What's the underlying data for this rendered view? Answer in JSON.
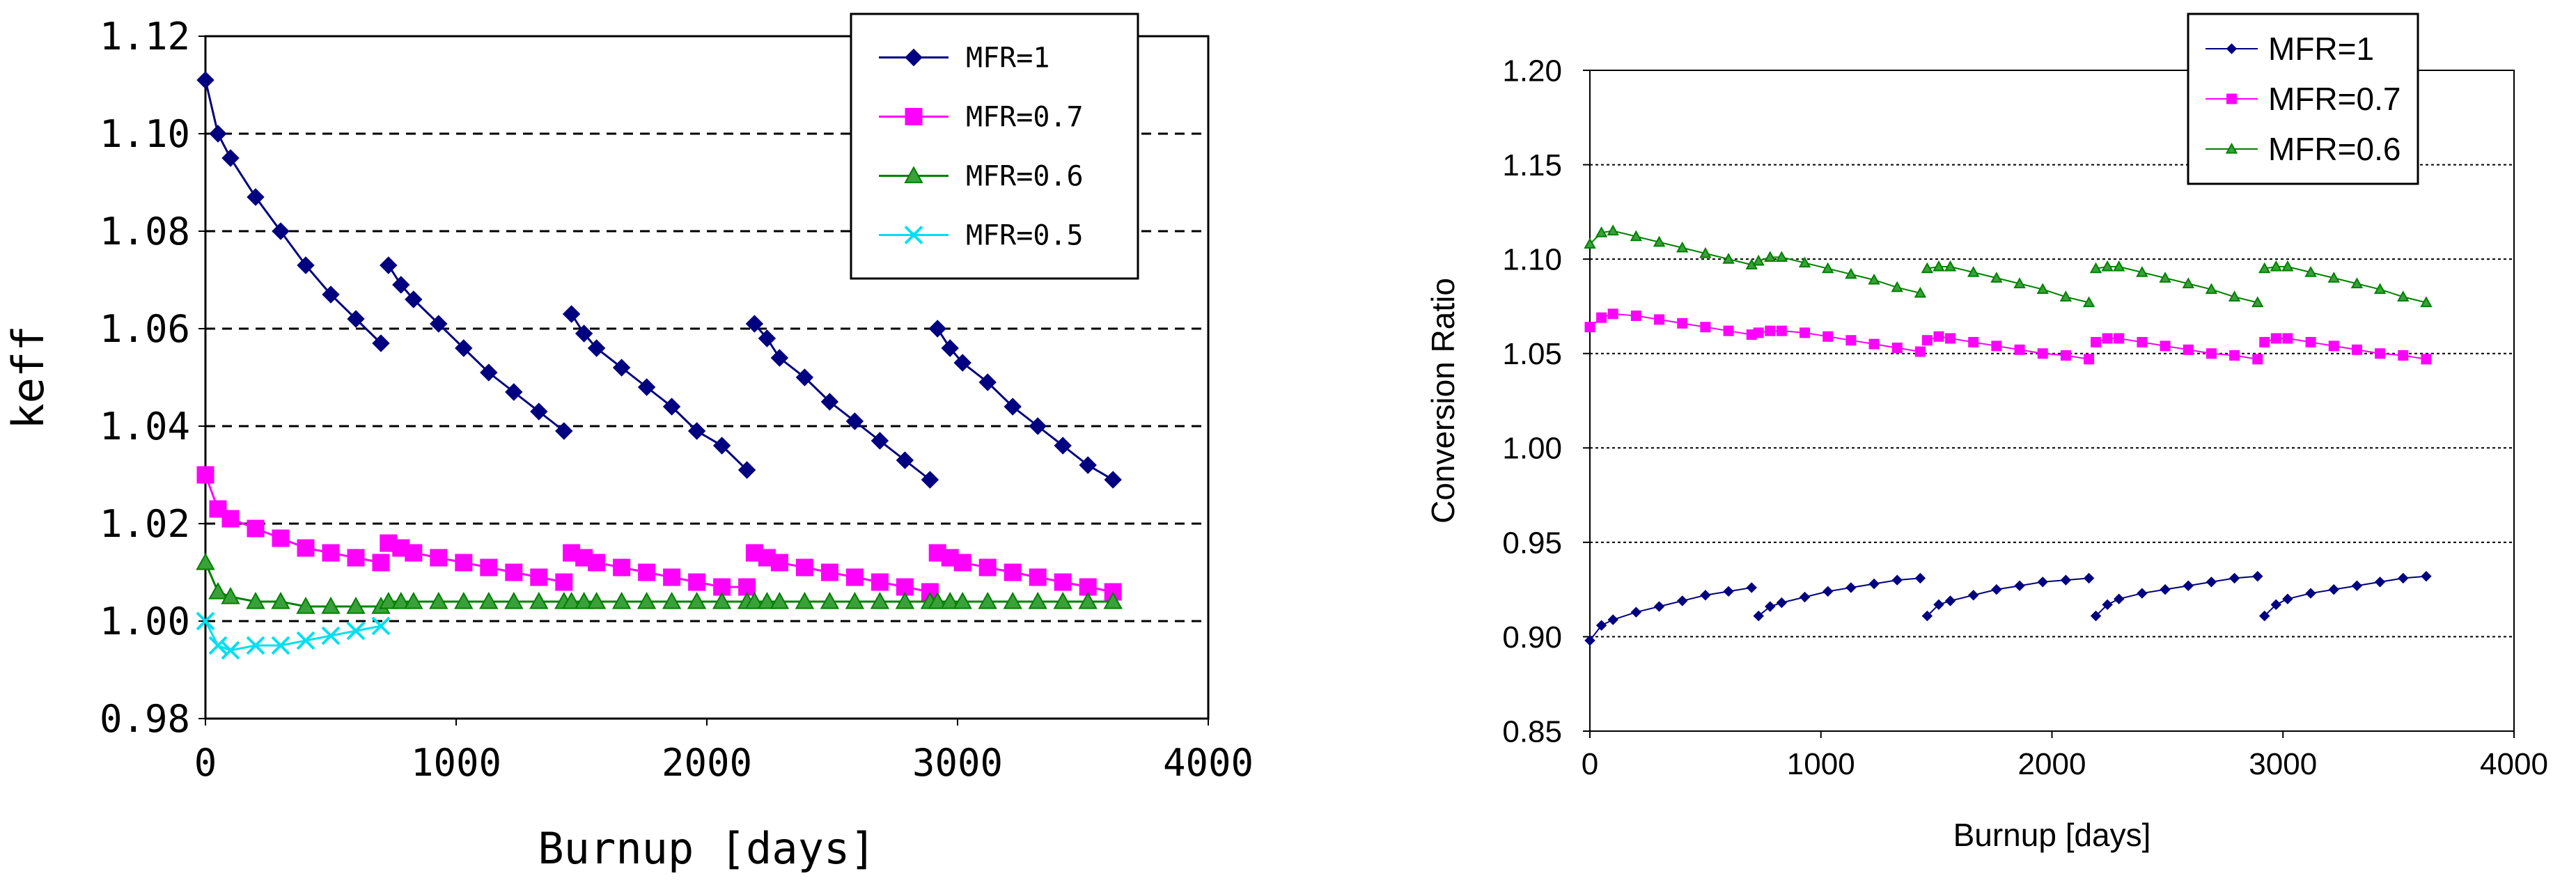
{
  "chart_data": [
    {
      "type": "line",
      "title": "",
      "xlabel": "Burnup [days]",
      "ylabel": "keff",
      "xlim": [
        0,
        4000
      ],
      "ylim": [
        0.98,
        1.12
      ],
      "x_ticks": [
        "0",
        "1000",
        "2000",
        "3000",
        "4000"
      ],
      "y_ticks": [
        "0.98",
        "1.00",
        "1.02",
        "1.04",
        "1.06",
        "1.08",
        "1.10",
        "1.12"
      ],
      "grid": "horizontal-dashed",
      "legend_position": "top-right",
      "series": [
        {
          "name": "MFR=1",
          "color": "#000080",
          "marker": "diamond",
          "segments": [
            {
              "x": [
                0,
                50,
                100,
                200,
                300,
                400,
                500,
                600,
                700
              ],
              "y": [
                1.111,
                1.1,
                1.095,
                1.087,
                1.08,
                1.073,
                1.067,
                1.062,
                1.057
              ]
            },
            {
              "x": [
                730,
                780,
                830,
                930,
                1030,
                1130,
                1230,
                1330,
                1430
              ],
              "y": [
                1.073,
                1.069,
                1.066,
                1.061,
                1.056,
                1.051,
                1.047,
                1.043,
                1.039
              ]
            },
            {
              "x": [
                1460,
                1510,
                1560,
                1660,
                1760,
                1860,
                1960,
                2060,
                2160
              ],
              "y": [
                1.063,
                1.059,
                1.056,
                1.052,
                1.048,
                1.044,
                1.039,
                1.036,
                1.031
              ]
            },
            {
              "x": [
                2190,
                2240,
                2290,
                2390,
                2490,
                2590,
                2690,
                2790,
                2890
              ],
              "y": [
                1.061,
                1.058,
                1.054,
                1.05,
                1.045,
                1.041,
                1.037,
                1.033,
                1.029
              ]
            },
            {
              "x": [
                2920,
                2970,
                3020,
                3120,
                3220,
                3320,
                3420,
                3520,
                3620
              ],
              "y": [
                1.06,
                1.056,
                1.053,
                1.049,
                1.044,
                1.04,
                1.036,
                1.032,
                1.029
              ]
            }
          ]
        },
        {
          "name": "MFR=0.7",
          "color": "#ff00ff",
          "marker": "square",
          "segments": [
            {
              "x": [
                0,
                50,
                100,
                200,
                300,
                400,
                500,
                600,
                700
              ],
              "y": [
                1.03,
                1.023,
                1.021,
                1.019,
                1.017,
                1.015,
                1.014,
                1.013,
                1.012
              ]
            },
            {
              "x": [
                730,
                780,
                830,
                930,
                1030,
                1130,
                1230,
                1330,
                1430
              ],
              "y": [
                1.016,
                1.015,
                1.014,
                1.013,
                1.012,
                1.011,
                1.01,
                1.009,
                1.008
              ]
            },
            {
              "x": [
                1460,
                1510,
                1560,
                1660,
                1760,
                1860,
                1960,
                2060,
                2160
              ],
              "y": [
                1.014,
                1.013,
                1.012,
                1.011,
                1.01,
                1.009,
                1.008,
                1.007,
                1.007
              ]
            },
            {
              "x": [
                2190,
                2240,
                2290,
                2390,
                2490,
                2590,
                2690,
                2790,
                2890
              ],
              "y": [
                1.014,
                1.013,
                1.012,
                1.011,
                1.01,
                1.009,
                1.008,
                1.007,
                1.006
              ]
            },
            {
              "x": [
                2920,
                2970,
                3020,
                3120,
                3220,
                3320,
                3420,
                3520,
                3620
              ],
              "y": [
                1.014,
                1.013,
                1.012,
                1.011,
                1.01,
                1.009,
                1.008,
                1.007,
                1.006
              ]
            }
          ]
        },
        {
          "name": "MFR=0.6",
          "color": "#008000",
          "marker": "triangle",
          "segments": [
            {
              "x": [
                0,
                50,
                100,
                200,
                300,
                400,
                500,
                600,
                700
              ],
              "y": [
                1.012,
                1.006,
                1.005,
                1.004,
                1.004,
                1.003,
                1.003,
                1.003,
                1.003
              ]
            },
            {
              "x": [
                730,
                780,
                830,
                930,
                1030,
                1130,
                1230,
                1330,
                1430
              ],
              "y": [
                1.004,
                1.004,
                1.004,
                1.004,
                1.004,
                1.004,
                1.004,
                1.004,
                1.004
              ]
            },
            {
              "x": [
                1460,
                1510,
                1560,
                1660,
                1760,
                1860,
                1960,
                2060,
                2160
              ],
              "y": [
                1.004,
                1.004,
                1.004,
                1.004,
                1.004,
                1.004,
                1.004,
                1.004,
                1.004
              ]
            },
            {
              "x": [
                2190,
                2240,
                2290,
                2390,
                2490,
                2590,
                2690,
                2790,
                2890
              ],
              "y": [
                1.004,
                1.004,
                1.004,
                1.004,
                1.004,
                1.004,
                1.004,
                1.004,
                1.004
              ]
            },
            {
              "x": [
                2920,
                2970,
                3020,
                3120,
                3220,
                3320,
                3420,
                3520,
                3620
              ],
              "y": [
                1.004,
                1.004,
                1.004,
                1.004,
                1.004,
                1.004,
                1.004,
                1.004,
                1.004
              ]
            }
          ]
        },
        {
          "name": "MFR=0.5",
          "color": "#00e0f0",
          "marker": "x",
          "segments": [
            {
              "x": [
                0,
                50,
                100,
                200,
                300,
                400,
                500,
                600,
                700
              ],
              "y": [
                1.0,
                0.995,
                0.994,
                0.995,
                0.995,
                0.996,
                0.997,
                0.998,
                0.999
              ]
            }
          ]
        }
      ]
    },
    {
      "type": "line",
      "title": "",
      "xlabel": "Burnup [days]",
      "ylabel": "Conversion Ratio",
      "xlim": [
        0,
        4000
      ],
      "ylim": [
        0.85,
        1.2
      ],
      "x_ticks": [
        "0",
        "1000",
        "2000",
        "3000",
        "4000"
      ],
      "y_ticks": [
        "0.85",
        "0.90",
        "0.95",
        "1.00",
        "1.05",
        "1.10",
        "1.15",
        "1.20"
      ],
      "grid": "horizontal-dotted",
      "legend_position": "top-right",
      "series": [
        {
          "name": "MFR=1",
          "color": "#000080",
          "marker": "diamond",
          "segments": [
            {
              "x": [
                0,
                50,
                100,
                200,
                300,
                400,
                500,
                600,
                700
              ],
              "y": [
                0.898,
                0.906,
                0.909,
                0.913,
                0.916,
                0.919,
                0.922,
                0.924,
                0.926
              ]
            },
            {
              "x": [
                730,
                780,
                830,
                930,
                1030,
                1130,
                1230,
                1330,
                1430
              ],
              "y": [
                0.911,
                0.916,
                0.918,
                0.921,
                0.924,
                0.926,
                0.928,
                0.93,
                0.931
              ]
            },
            {
              "x": [
                1460,
                1510,
                1560,
                1660,
                1760,
                1860,
                1960,
                2060,
                2160
              ],
              "y": [
                0.911,
                0.917,
                0.919,
                0.922,
                0.925,
                0.927,
                0.929,
                0.93,
                0.931
              ]
            },
            {
              "x": [
                2190,
                2240,
                2290,
                2390,
                2490,
                2590,
                2690,
                2790,
                2890
              ],
              "y": [
                0.911,
                0.917,
                0.92,
                0.923,
                0.925,
                0.927,
                0.929,
                0.931,
                0.932
              ]
            },
            {
              "x": [
                2920,
                2970,
                3020,
                3120,
                3220,
                3320,
                3420,
                3520,
                3620
              ],
              "y": [
                0.911,
                0.917,
                0.92,
                0.923,
                0.925,
                0.927,
                0.929,
                0.931,
                0.932
              ]
            }
          ]
        },
        {
          "name": "MFR=0.7",
          "color": "#ff00ff",
          "marker": "square",
          "segments": [
            {
              "x": [
                0,
                50,
                100,
                200,
                300,
                400,
                500,
                600,
                700
              ],
              "y": [
                1.064,
                1.069,
                1.071,
                1.07,
                1.068,
                1.066,
                1.064,
                1.062,
                1.06
              ]
            },
            {
              "x": [
                730,
                780,
                830,
                930,
                1030,
                1130,
                1230,
                1330,
                1430
              ],
              "y": [
                1.061,
                1.062,
                1.062,
                1.061,
                1.059,
                1.057,
                1.055,
                1.053,
                1.051
              ]
            },
            {
              "x": [
                1460,
                1510,
                1560,
                1660,
                1760,
                1860,
                1960,
                2060,
                2160
              ],
              "y": [
                1.057,
                1.059,
                1.058,
                1.056,
                1.054,
                1.052,
                1.05,
                1.049,
                1.047
              ]
            },
            {
              "x": [
                2190,
                2240,
                2290,
                2390,
                2490,
                2590,
                2690,
                2790,
                2890
              ],
              "y": [
                1.056,
                1.058,
                1.058,
                1.056,
                1.054,
                1.052,
                1.05,
                1.049,
                1.047
              ]
            },
            {
              "x": [
                2920,
                2970,
                3020,
                3120,
                3220,
                3320,
                3420,
                3520,
                3620
              ],
              "y": [
                1.056,
                1.058,
                1.058,
                1.056,
                1.054,
                1.052,
                1.05,
                1.049,
                1.047
              ]
            }
          ]
        },
        {
          "name": "MFR=0.6",
          "color": "#008000",
          "marker": "triangle",
          "segments": [
            {
              "x": [
                0,
                50,
                100,
                200,
                300,
                400,
                500,
                600,
                700
              ],
              "y": [
                1.108,
                1.114,
                1.115,
                1.112,
                1.109,
                1.106,
                1.103,
                1.1,
                1.097
              ]
            },
            {
              "x": [
                730,
                780,
                830,
                930,
                1030,
                1130,
                1230,
                1330,
                1430
              ],
              "y": [
                1.099,
                1.101,
                1.101,
                1.098,
                1.095,
                1.092,
                1.089,
                1.085,
                1.082
              ]
            },
            {
              "x": [
                1460,
                1510,
                1560,
                1660,
                1760,
                1860,
                1960,
                2060,
                2160
              ],
              "y": [
                1.095,
                1.096,
                1.096,
                1.093,
                1.09,
                1.087,
                1.084,
                1.08,
                1.077
              ]
            },
            {
              "x": [
                2190,
                2240,
                2290,
                2390,
                2490,
                2590,
                2690,
                2790,
                2890
              ],
              "y": [
                1.095,
                1.096,
                1.096,
                1.093,
                1.09,
                1.087,
                1.084,
                1.08,
                1.077
              ]
            },
            {
              "x": [
                2920,
                2970,
                3020,
                3120,
                3220,
                3320,
                3420,
                3520,
                3620
              ],
              "y": [
                1.095,
                1.096,
                1.096,
                1.093,
                1.09,
                1.087,
                1.084,
                1.08,
                1.077
              ]
            }
          ]
        }
      ]
    }
  ]
}
